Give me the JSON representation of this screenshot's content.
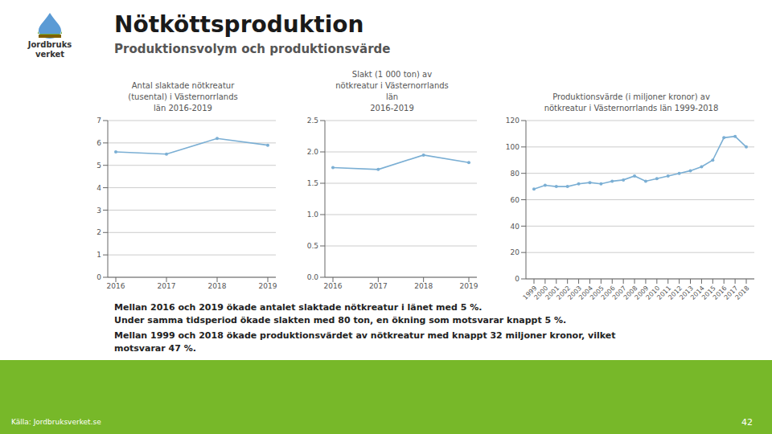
{
  "title": "Nötköttsproduktion",
  "subtitle": "Produktionsvolym och produktionsvärde",
  "annotations": [
    "Mellan 2016 och 2019 ökade antalet slaktade nötkreatur i länet med 5 %.\nUnder samma tidsperiod ökade slakten med 80 ton, en ökning som motsvarar knappt 5 %.",
    "Mellan 1999 och 2018 ökade produktionsvärdet av nötkreatur med knappt 32 miljoner kronor, vilket\nmotsvarar 47 %.",
    "Källa: Jordbruksverket.se",
    "42",
    "Jordbruks\nverket"
  ],
  "chart_data": [
    {
      "type": "line",
      "title": "Antal slaktade nötkreatur\n(tusental) i Västernorrlands\nlän 2016-2019",
      "categories": [
        "2016",
        "2017",
        "2018",
        "2019"
      ],
      "values": [
        5.6,
        5.5,
        6.2,
        5.9
      ],
      "color": "#7bafd4",
      "marker": "o",
      "ylim": [
        0,
        7
      ],
      "yticks": [
        0,
        1,
        2,
        3,
        4,
        5,
        6,
        7
      ],
      "grid": true
    },
    {
      "type": "line",
      "title": "Slakt (1 000 ton) av\nnötkreatur i Västernorrlands\nlän\n2016-2019",
      "categories": [
        "2016",
        "2017",
        "2018",
        "2019"
      ],
      "values": [
        1.75,
        1.72,
        1.95,
        1.83
      ],
      "color": "#7bafd4",
      "marker": "o",
      "ylim": [
        0.0,
        2.5
      ],
      "yticks": [
        {
          "value": 0,
          "label": "0.0"
        },
        0.5,
        {
          "value": 1,
          "label": "1.0"
        },
        1.5,
        {
          "value": 2,
          "label": "2.0"
        },
        2.5
      ],
      "grid": true
    },
    {
      "type": "line",
      "title": "Produktionsvärde (i miljoner kronor) av\nnötkreatur i Västernorrlands län 1999-2018",
      "categories": [
        "1999",
        "2000",
        "2001",
        "2002",
        "2003",
        "2004",
        "2005",
        "2006",
        "2007",
        "2008",
        "2009",
        "2010",
        "2011",
        "2012",
        "2013",
        "2014",
        "2015",
        "2016",
        "2017",
        "2018"
      ],
      "values": [
        68,
        71,
        70,
        70,
        72,
        73,
        72,
        74,
        75,
        78,
        74,
        76,
        78,
        80,
        82,
        85,
        90,
        107,
        108,
        100
      ],
      "color": "#7bafd4",
      "marker": "o",
      "ylim": [
        0,
        120
      ],
      "yticks": [
        0,
        20,
        40,
        60,
        80,
        100,
        120
      ],
      "grid": true
    }
  ]
}
